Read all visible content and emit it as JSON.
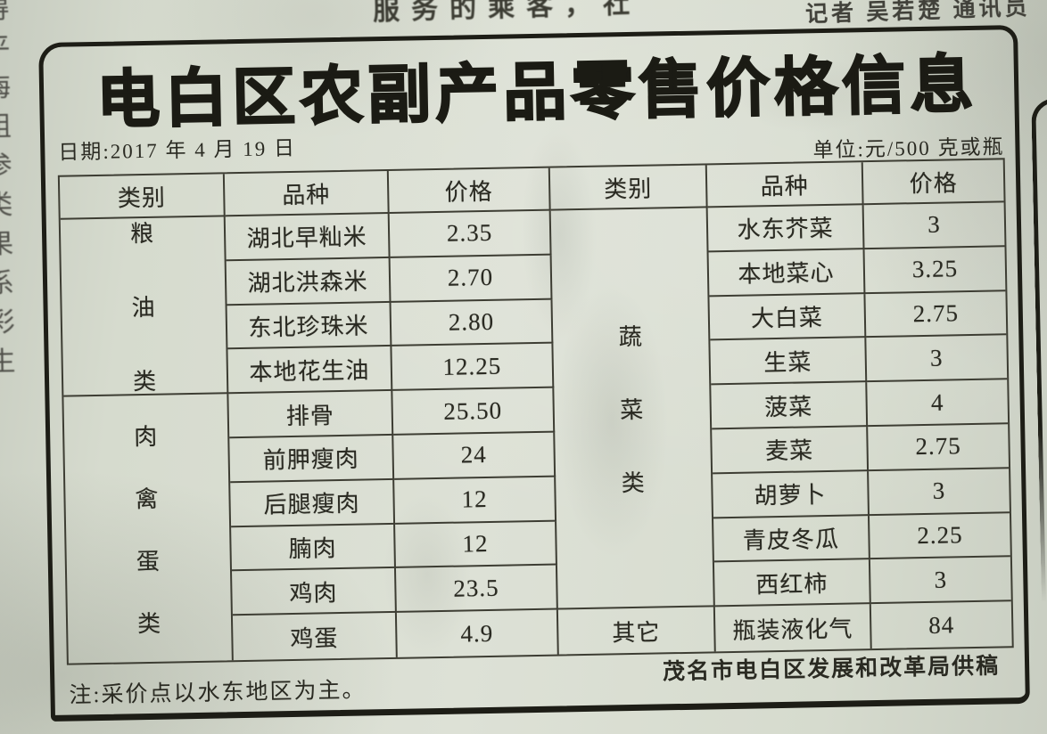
{
  "masthead": {
    "top_left_fragment": "服务的乘客，社",
    "top_right_fragment": "记者 吴若楚 通讯员",
    "left_edge_fragments": [
      "得",
      "平",
      "海",
      "组",
      "参",
      "类",
      "果",
      "系",
      "彩",
      "生"
    ]
  },
  "article": {
    "title": "电白区农副产品零售价格信息",
    "date_line": "日期:2017 年 4 月 19 日",
    "unit_line": "单位:元/500 克或瓶",
    "note": "注:采价点以水东地区为主。",
    "source": "茂名市电白区发展和改革局供稿"
  },
  "table": {
    "left_headers": [
      "类别",
      "品种",
      "价格"
    ],
    "right_headers": [
      "类别",
      "品种",
      "价格"
    ],
    "left_groups": [
      {
        "category_chars": [
          "粮",
          "油",
          "类"
        ],
        "rows": [
          [
            "湖北早籼米",
            "2.35"
          ],
          [
            "湖北洪森米",
            "2.70"
          ],
          [
            "东北珍珠米",
            "2.80"
          ],
          [
            "本地花生油",
            "12.25"
          ]
        ]
      },
      {
        "category_chars": [
          "肉",
          "禽",
          "蛋",
          "类"
        ],
        "rows": [
          [
            "排骨",
            "25.50"
          ],
          [
            "前胛瘦肉",
            "24"
          ],
          [
            "后腿瘦肉",
            "12"
          ],
          [
            "腩肉",
            "12"
          ],
          [
            "鸡肉",
            "23.5"
          ],
          [
            "鸡蛋",
            "4.9"
          ]
        ]
      }
    ],
    "right_groups": [
      {
        "category_chars": [
          "蔬",
          "菜",
          "类"
        ],
        "rows": [
          [
            "水东芥菜",
            "3"
          ],
          [
            "本地菜心",
            "3.25"
          ],
          [
            "大白菜",
            "2.75"
          ],
          [
            "生菜",
            "3"
          ],
          [
            "菠菜",
            "4"
          ],
          [
            "麦菜",
            "2.75"
          ],
          [
            "胡萝卜",
            "3"
          ],
          [
            "青皮冬瓜",
            "2.25"
          ],
          [
            "西红柿",
            "3"
          ]
        ]
      },
      {
        "category_label": "其它",
        "rows": [
          [
            "瓶装液化气",
            "84"
          ]
        ]
      }
    ]
  }
}
